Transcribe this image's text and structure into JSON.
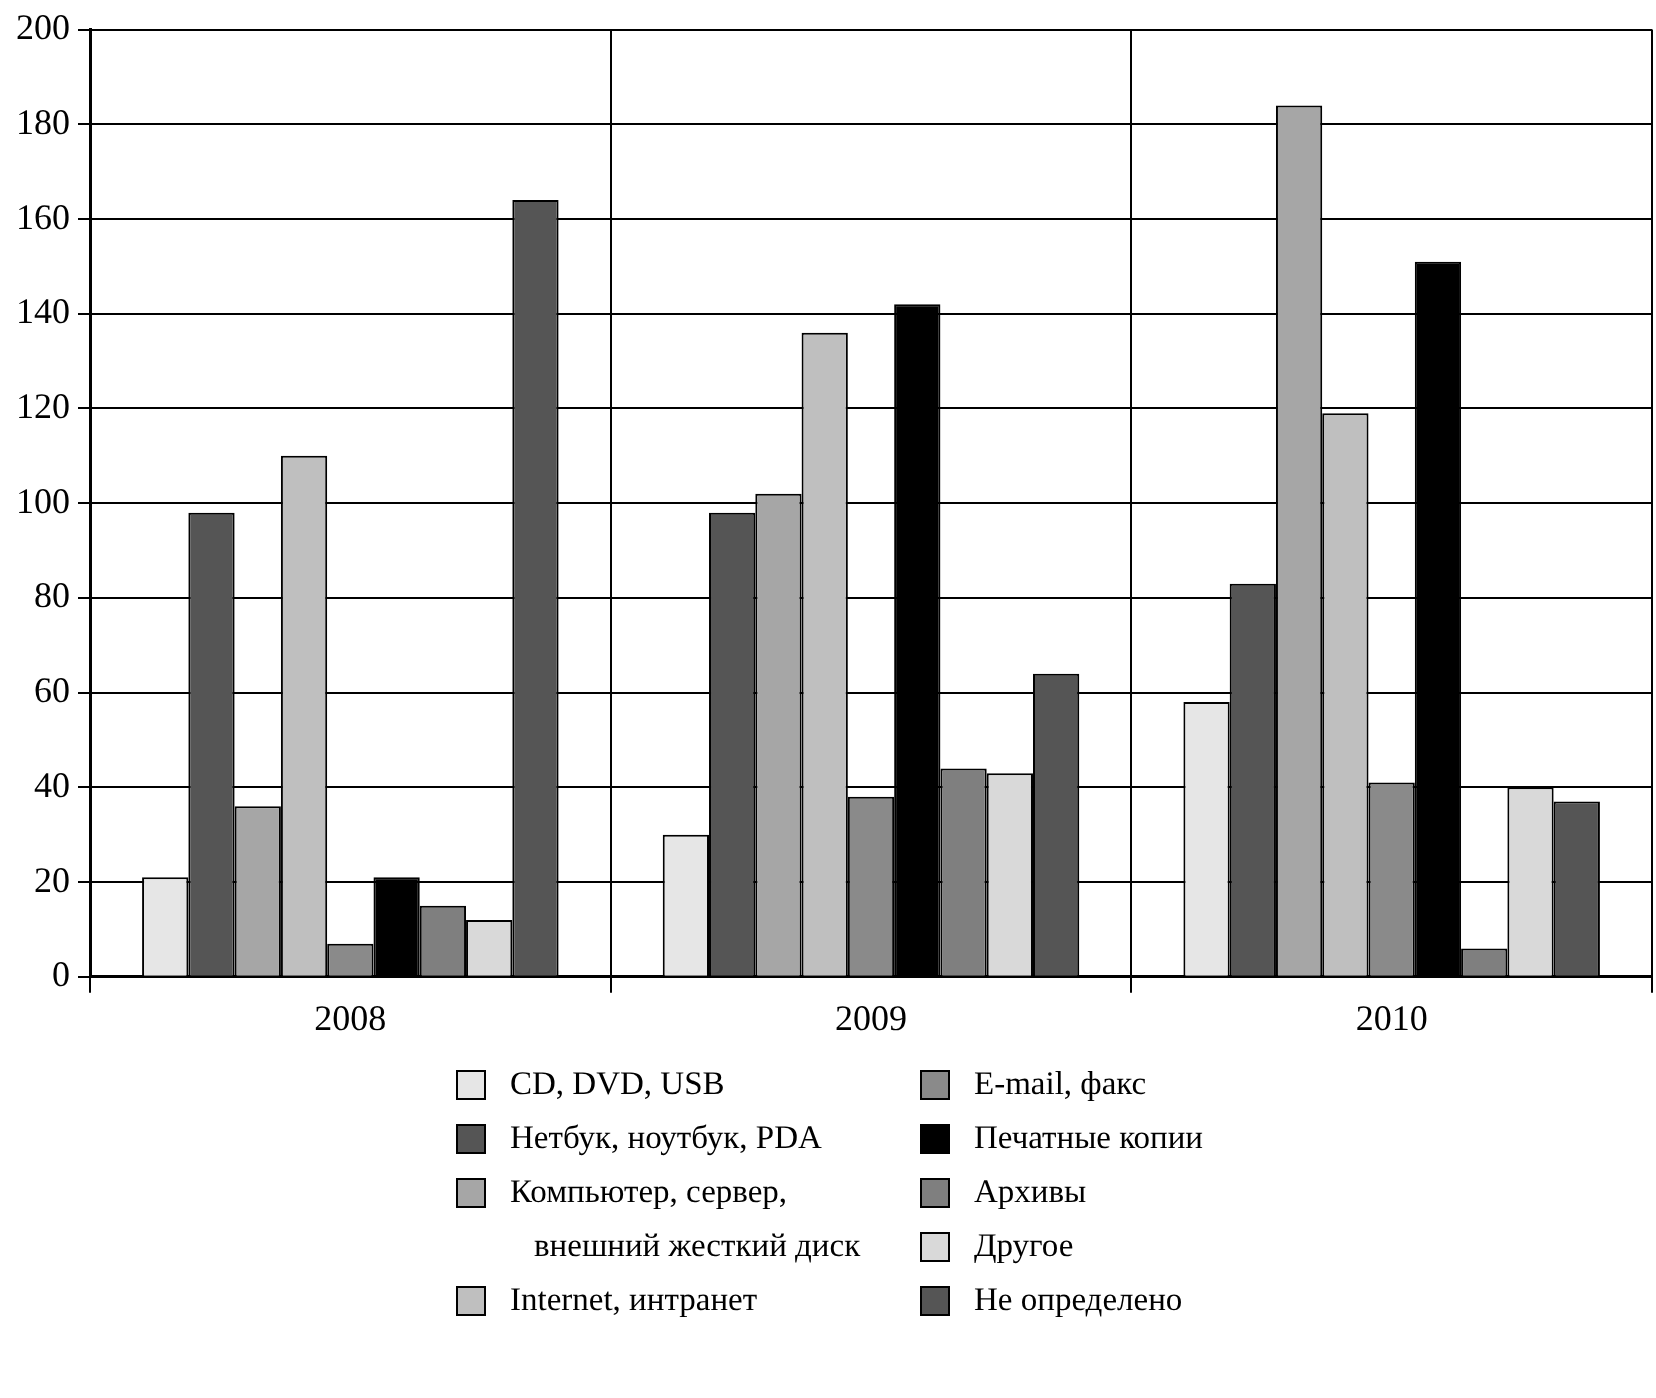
{
  "chart_data": {
    "type": "bar",
    "categories": [
      "2008",
      "2009",
      "2010"
    ],
    "series": [
      {
        "name": "CD, DVD, USB",
        "color": "#e6e6e6",
        "values": [
          21,
          30,
          58
        ]
      },
      {
        "name": "Нетбук, ноутбук, PDA",
        "color": "#555555",
        "values": [
          98,
          98,
          83
        ]
      },
      {
        "name": "Компьютер, сервер, внешний жесткий диск",
        "color": "#a6a6a6",
        "values": [
          36,
          102,
          184
        ]
      },
      {
        "name": "Internet, интранет",
        "color": "#bfbfbf",
        "values": [
          110,
          136,
          119
        ]
      },
      {
        "name": "E-mail, факс",
        "color": "#8a8a8a",
        "values": [
          7,
          38,
          41
        ]
      },
      {
        "name": "Печатные копии",
        "color": "#000000",
        "values": [
          21,
          142,
          151
        ]
      },
      {
        "name": "Архивы",
        "color": "#7f7f7f",
        "values": [
          15,
          44,
          6
        ]
      },
      {
        "name": "Другое",
        "color": "#d9d9d9",
        "values": [
          12,
          43,
          40
        ]
      },
      {
        "name": "Не определено",
        "color": "#555555",
        "values": [
          164,
          64,
          37
        ]
      }
    ],
    "ylim": [
      0,
      200
    ],
    "yticks": [
      0,
      20,
      40,
      60,
      80,
      100,
      120,
      140,
      160,
      180,
      200
    ],
    "grid": true,
    "legend": "bottom"
  }
}
